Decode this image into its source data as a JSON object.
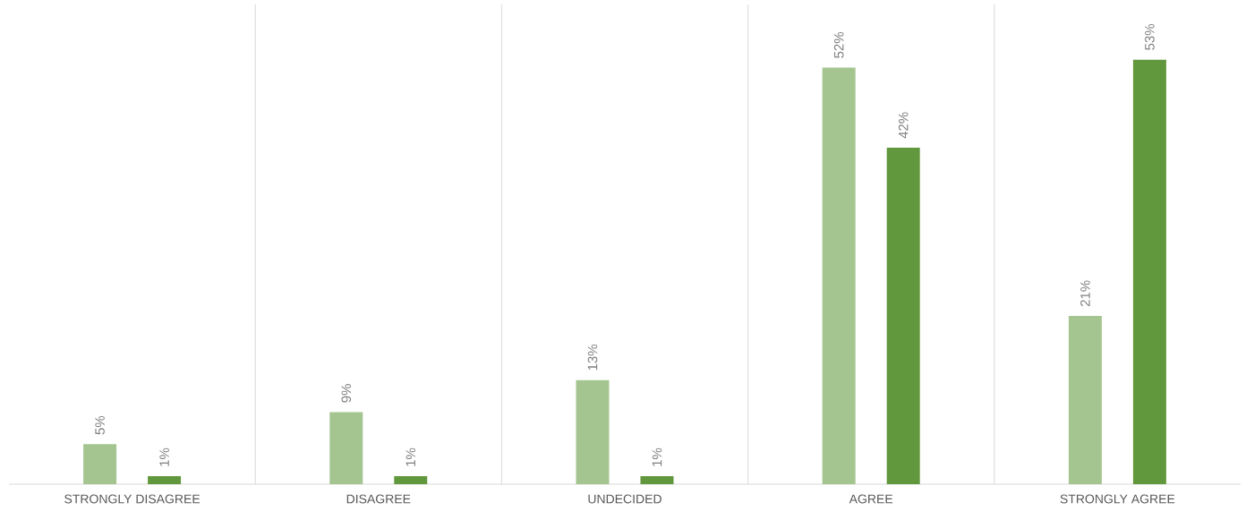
{
  "chart_data": {
    "type": "bar",
    "categories": [
      "STRONGLY DISAGREE",
      "DISAGREE",
      "UNDECIDED",
      "AGREE",
      "STRONGLY AGREE"
    ],
    "series": [
      {
        "color": "#a5c590",
        "values": [
          5,
          9,
          13,
          52,
          21
        ],
        "value_labels": [
          "5%",
          "9%",
          "13%",
          "52%",
          "21%"
        ]
      },
      {
        "color": "#61983d",
        "values": [
          1,
          1,
          1,
          42,
          53
        ],
        "value_labels": [
          "1%",
          "1%",
          "1%",
          "42%",
          "53%"
        ]
      }
    ],
    "grid": "x"
  }
}
